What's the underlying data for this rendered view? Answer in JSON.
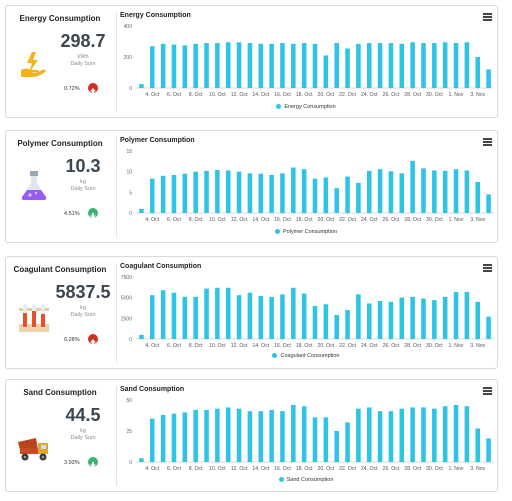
{
  "colors": {
    "bar": "#2ec4e6",
    "up": "#d62d20",
    "down": "#3cb371",
    "axis": "#cccccc"
  },
  "x_tick_labels": [
    "4. Oct",
    "6. Oct",
    "8. Oct",
    "10. Oct",
    "12. Oct",
    "14. Oct",
    "16. Oct",
    "18. Oct",
    "20. Oct",
    "22. Oct",
    "24. Oct",
    "26. Oct",
    "28. Oct",
    "30. Oct",
    "1. Nov",
    "3. Nov"
  ],
  "cards": [
    {
      "id": "energy",
      "kpi": {
        "title": "Energy Consumption",
        "value": "298.7",
        "unit": "kWh",
        "daily_label": "Daily Sum",
        "percent": "0.72%",
        "trend": "up",
        "icon": "energy-hand-icon"
      },
      "chart_title": "Energy Consumption",
      "legend": "Energy Consumption",
      "y_ticks": [
        "400",
        "200",
        "0"
      ]
    },
    {
      "id": "polymer",
      "kpi": {
        "title": "Polymer Consumption",
        "value": "10.3",
        "unit": "kg",
        "daily_label": "Daily Sum",
        "percent": "4.51%",
        "trend": "down",
        "icon": "flask-icon"
      },
      "chart_title": "Polymer Consumption",
      "legend": "Polymer Consumption",
      "y_ticks": [
        "15",
        "10",
        "5",
        "0"
      ]
    },
    {
      "id": "coagulant",
      "kpi": {
        "title": "Coagulant Consumption",
        "value": "5837.5",
        "unit": "kg",
        "daily_label": "Daily Sum",
        "percent": "0.28%",
        "trend": "up",
        "icon": "test-tubes-icon"
      },
      "chart_title": "Coagulant Consumption",
      "legend": "Coagulant Consumption",
      "y_ticks": [
        "7500",
        "5000",
        "2500",
        "0"
      ]
    },
    {
      "id": "sand",
      "kpi": {
        "title": "Sand Consumption",
        "value": "44.5",
        "unit": "kg",
        "daily_label": "Daily Sum",
        "percent": "3.93%",
        "trend": "down",
        "icon": "dump-truck-icon"
      },
      "chart_title": "Sand Consumption",
      "legend": "Sand Consumption",
      "y_ticks": [
        "50",
        "25",
        "0"
      ]
    }
  ],
  "chart_data": [
    {
      "type": "bar",
      "title": "Energy Consumption",
      "series_name": "Energy Consumption",
      "ylim": [
        0,
        400
      ],
      "categories": [
        "3. Oct",
        "4. Oct",
        "5. Oct",
        "6. Oct",
        "7. Oct",
        "8. Oct",
        "9. Oct",
        "10. Oct",
        "11. Oct",
        "12. Oct",
        "13. Oct",
        "14. Oct",
        "15. Oct",
        "16. Oct",
        "17. Oct",
        "18. Oct",
        "19. Oct",
        "20. Oct",
        "21. Oct",
        "22. Oct",
        "23. Oct",
        "24. Oct",
        "25. Oct",
        "26. Oct",
        "27. Oct",
        "28. Oct",
        "29. Oct",
        "30. Oct",
        "31. Oct",
        "1. Nov",
        "2. Nov",
        "3. Nov",
        "4. Nov"
      ],
      "values": [
        25,
        270,
        285,
        280,
        275,
        285,
        290,
        290,
        295,
        295,
        290,
        285,
        285,
        290,
        285,
        290,
        285,
        210,
        290,
        255,
        285,
        290,
        290,
        290,
        285,
        295,
        290,
        290,
        295,
        290,
        295,
        200,
        120
      ]
    },
    {
      "type": "bar",
      "title": "Polymer Consumption",
      "series_name": "Polymer Consumption",
      "ylim": [
        0,
        15
      ],
      "categories": [
        "3. Oct",
        "4. Oct",
        "5. Oct",
        "6. Oct",
        "7. Oct",
        "8. Oct",
        "9. Oct",
        "10. Oct",
        "11. Oct",
        "12. Oct",
        "13. Oct",
        "14. Oct",
        "15. Oct",
        "16. Oct",
        "17. Oct",
        "18. Oct",
        "19. Oct",
        "20. Oct",
        "21. Oct",
        "22. Oct",
        "23. Oct",
        "24. Oct",
        "25. Oct",
        "26. Oct",
        "27. Oct",
        "28. Oct",
        "29. Oct",
        "30. Oct",
        "31. Oct",
        "1. Nov",
        "2. Nov",
        "3. Nov",
        "4. Nov"
      ],
      "values": [
        1,
        8.3,
        9,
        9.2,
        9.5,
        10,
        10.2,
        10.4,
        10.3,
        10,
        9.6,
        9.5,
        9.2,
        9.6,
        11,
        10.6,
        8.3,
        8.6,
        6,
        8.8,
        7.3,
        10.2,
        10.6,
        10.1,
        9.6,
        12.6,
        10.8,
        10.3,
        10.2,
        10.6,
        10.3,
        7.5,
        4.5
      ]
    },
    {
      "type": "bar",
      "title": "Coagulant Consumption",
      "series_name": "Coagulant Consumption",
      "ylim": [
        0,
        7500
      ],
      "categories": [
        "3. Oct",
        "4. Oct",
        "5. Oct",
        "6. Oct",
        "7. Oct",
        "8. Oct",
        "9. Oct",
        "10. Oct",
        "11. Oct",
        "12. Oct",
        "13. Oct",
        "14. Oct",
        "15. Oct",
        "16. Oct",
        "17. Oct",
        "18. Oct",
        "19. Oct",
        "20. Oct",
        "21. Oct",
        "22. Oct",
        "23. Oct",
        "24. Oct",
        "25. Oct",
        "26. Oct",
        "27. Oct",
        "28. Oct",
        "29. Oct",
        "30. Oct",
        "31. Oct",
        "1. Nov",
        "2. Nov",
        "3. Nov",
        "4. Nov"
      ],
      "values": [
        500,
        5300,
        5900,
        5600,
        5100,
        5100,
        6100,
        6200,
        6200,
        5300,
        5600,
        5200,
        5100,
        5400,
        6200,
        5500,
        4000,
        4200,
        2900,
        3500,
        5400,
        4300,
        4600,
        4500,
        5000,
        5100,
        4900,
        4700,
        5100,
        5700,
        5700,
        4500,
        2700
      ]
    },
    {
      "type": "bar",
      "title": "Sand Consumption",
      "series_name": "Sand Consumption",
      "ylim": [
        0,
        50
      ],
      "categories": [
        "3. Oct",
        "4. Oct",
        "5. Oct",
        "6. Oct",
        "7. Oct",
        "8. Oct",
        "9. Oct",
        "10. Oct",
        "11. Oct",
        "12. Oct",
        "13. Oct",
        "14. Oct",
        "15. Oct",
        "16. Oct",
        "17. Oct",
        "18. Oct",
        "19. Oct",
        "20. Oct",
        "21. Oct",
        "22. Oct",
        "23. Oct",
        "24. Oct",
        "25. Oct",
        "26. Oct",
        "27. Oct",
        "28. Oct",
        "29. Oct",
        "30. Oct",
        "31. Oct",
        "1. Nov",
        "2. Nov",
        "3. Nov",
        "4. Nov"
      ],
      "values": [
        3,
        35,
        38,
        39,
        40,
        42,
        42,
        43,
        44,
        43,
        41,
        41,
        42,
        41,
        46,
        45,
        36,
        36,
        25,
        32,
        43,
        44,
        41,
        41,
        43,
        44,
        44,
        43,
        45,
        46,
        45,
        27,
        19
      ]
    }
  ]
}
